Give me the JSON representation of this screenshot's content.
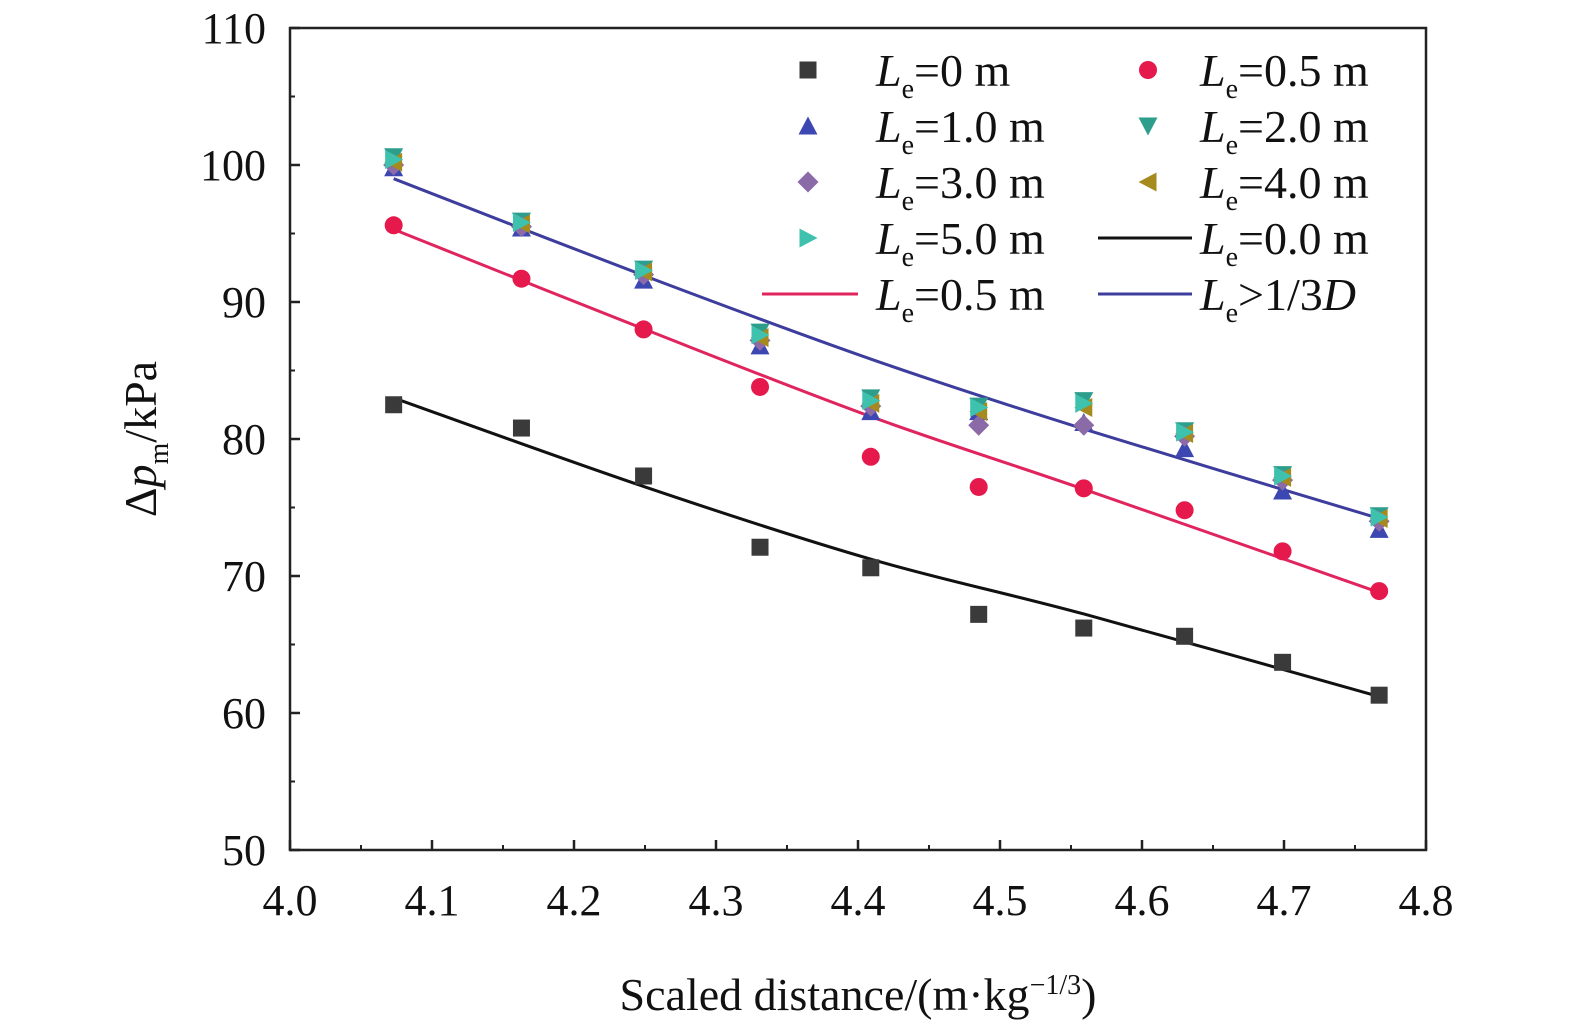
{
  "chart_data": {
    "type": "scatter",
    "xlabel": "Scaled distance/(m·kg",
    "xlabel_exp": "−1/3",
    "xlabel_close": ")",
    "ylabel": {
      "prefix": "Δ",
      "var": "p",
      "sub": "m",
      "suffix": "/kPa"
    },
    "xlim": [
      4.0,
      4.8
    ],
    "ylim": [
      50,
      110
    ],
    "xticks": [
      4.0,
      4.1,
      4.2,
      4.3,
      4.4,
      4.5,
      4.6,
      4.7,
      4.8
    ],
    "yticks": [
      50,
      60,
      70,
      80,
      90,
      100,
      110
    ],
    "xtick_labels": [
      "4.0",
      "4.1",
      "4.2",
      "4.3",
      "4.4",
      "4.5",
      "4.6",
      "4.7",
      "4.8"
    ],
    "ytick_labels": [
      "50",
      "60",
      "70",
      "80",
      "90",
      "100",
      "110"
    ],
    "grid": false,
    "legend_position": "top-right",
    "x": [
      4.073,
      4.163,
      4.249,
      4.331,
      4.409,
      4.485,
      4.559,
      4.63,
      4.699,
      4.767
    ],
    "series": [
      {
        "label_var": "L",
        "label_sub": "e",
        "label_rest": "=0 m",
        "marker": "square",
        "color": "#3a3a3a",
        "values": [
          82.5,
          80.8,
          77.3,
          72.1,
          70.6,
          67.2,
          66.2,
          65.6,
          63.7,
          61.3
        ]
      },
      {
        "label_var": "L",
        "label_sub": "e",
        "label_rest": "=0.5 m",
        "marker": "circle",
        "color": "#e5194b",
        "values": [
          95.6,
          91.7,
          88.0,
          83.8,
          78.7,
          76.5,
          76.4,
          74.8,
          71.8,
          68.9
        ]
      },
      {
        "label_var": "L",
        "label_sub": "e",
        "label_rest": "=1.0 m",
        "marker": "triangle-up",
        "color": "#3d47b2",
        "values": [
          99.8,
          95.4,
          91.6,
          86.8,
          82.0,
          82.0,
          81.2,
          79.3,
          76.2,
          73.4
        ]
      },
      {
        "label_var": "L",
        "label_sub": "e",
        "label_rest": "=2.0 m",
        "marker": "triangle-down",
        "color": "#2e9e8c",
        "values": [
          100.6,
          95.9,
          92.4,
          87.8,
          83.0,
          82.4,
          82.8,
          80.6,
          77.4,
          74.4
        ]
      },
      {
        "label_var": "L",
        "label_sub": "e",
        "label_rest": "=3.0 m",
        "marker": "diamond",
        "color": "#8b6aa8",
        "values": [
          100.0,
          95.5,
          92.0,
          87.2,
          82.4,
          81.0,
          81.0,
          80.2,
          77.0,
          74.0
        ]
      },
      {
        "label_var": "L",
        "label_sub": "e",
        "label_rest": "=4.0 m",
        "marker": "triangle-left",
        "color": "#a68a1e",
        "values": [
          100.2,
          95.7,
          92.2,
          87.4,
          82.6,
          82.0,
          82.3,
          80.4,
          77.2,
          74.2
        ]
      },
      {
        "label_var": "L",
        "label_sub": "e",
        "label_rest": "=5.0 m",
        "marker": "triangle-right",
        "color": "#3ec1ad",
        "values": [
          100.4,
          95.8,
          92.3,
          87.6,
          82.8,
          82.3,
          82.6,
          80.5,
          77.3,
          74.3
        ]
      }
    ],
    "fits": [
      {
        "label_var": "L",
        "label_sub": "e",
        "label_rest": "=0.0 m",
        "color": "#111111",
        "x": [
          4.073,
          4.25,
          4.41,
          4.56,
          4.767
        ],
        "y": [
          83.0,
          76.5,
          71.2,
          67.2,
          61.2
        ]
      },
      {
        "label_var": "L",
        "label_sub": "e",
        "label_rest": "=0.5 m",
        "color": "#e0245e",
        "x": [
          4.073,
          4.25,
          4.41,
          4.56,
          4.767
        ],
        "y": [
          95.3,
          88.0,
          81.6,
          76.3,
          68.8
        ]
      },
      {
        "label_var": "L",
        "label_sub": "e",
        "label_rest": ">1/3",
        "label_tail": "D",
        "color": "#3d3d9e",
        "x": [
          4.073,
          4.25,
          4.41,
          4.56,
          4.767
        ],
        "y": [
          99.0,
          91.9,
          85.8,
          80.7,
          74.2
        ]
      }
    ]
  }
}
